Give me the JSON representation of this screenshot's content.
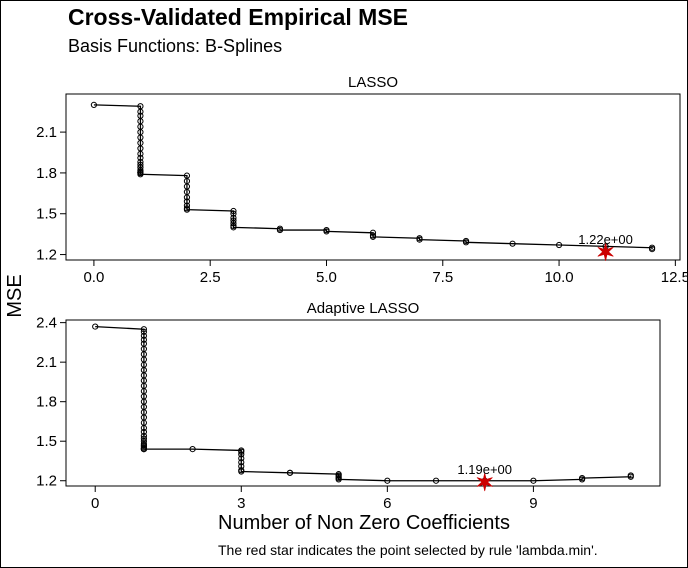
{
  "title": "Cross-Validated Empirical MSE",
  "subtitle": "Basis Functions: B-Splines",
  "ylabel": "MSE",
  "xlabel": "Number of Non Zero Coefficients",
  "footnote": "The red star indicates the point selected by rule 'lambda.min'.",
  "colors": {
    "line": "#000000",
    "star": "#cc0000"
  },
  "chart_data": [
    {
      "type": "line",
      "title": "LASSO",
      "xlim": [
        -0.6,
        12.6
      ],
      "ylim": [
        1.16,
        2.38
      ],
      "xticks": [
        0.0,
        2.5,
        5.0,
        7.5,
        10.0,
        12.5
      ],
      "xtick_labels": [
        "0.0",
        "2.5",
        "5.0",
        "7.5",
        "10.0",
        "12.5"
      ],
      "yticks": [
        1.2,
        1.5,
        1.8,
        2.1
      ],
      "ytick_labels": [
        "1.2",
        "1.5",
        "1.8",
        "2.1"
      ],
      "series": [
        {
          "x": [
            0,
            1,
            1,
            1,
            1,
            1,
            1,
            1,
            1,
            1,
            1,
            1,
            1,
            1,
            1,
            1,
            1,
            1,
            1,
            1,
            1,
            2,
            2,
            2,
            2,
            2,
            2,
            2,
            2,
            2,
            3,
            3,
            3,
            3,
            3,
            3,
            3,
            4,
            4,
            5,
            5,
            6,
            6,
            6,
            7,
            7,
            8,
            8,
            9,
            10,
            11,
            12,
            12
          ],
          "y": [
            2.3,
            2.29,
            2.25,
            2.22,
            2.18,
            2.14,
            2.1,
            2.06,
            2.02,
            1.98,
            1.94,
            1.91,
            1.88,
            1.86,
            1.84,
            1.82,
            1.81,
            1.8,
            1.8,
            1.8,
            1.79,
            1.78,
            1.74,
            1.7,
            1.66,
            1.62,
            1.59,
            1.56,
            1.54,
            1.53,
            1.52,
            1.5,
            1.47,
            1.45,
            1.43,
            1.41,
            1.4,
            1.39,
            1.38,
            1.38,
            1.37,
            1.36,
            1.34,
            1.33,
            1.32,
            1.31,
            1.3,
            1.29,
            1.28,
            1.27,
            1.26,
            1.25,
            1.24
          ]
        }
      ],
      "selected": {
        "x": 11,
        "y": 1.22,
        "label": "1.22e+00"
      }
    },
    {
      "type": "line",
      "title": "Adaptive LASSO",
      "xlim": [
        -0.6,
        11.6
      ],
      "ylim": [
        1.16,
        2.42
      ],
      "xticks": [
        0,
        3,
        6,
        9
      ],
      "xtick_labels": [
        "0",
        "3",
        "6",
        "9"
      ],
      "yticks": [
        1.2,
        1.5,
        1.8,
        2.1,
        2.4
      ],
      "ytick_labels": [
        "1.2",
        "1.5",
        "1.8",
        "2.1",
        "2.4"
      ],
      "series": [
        {
          "x": [
            0,
            1,
            1,
            1,
            1,
            1,
            1,
            1,
            1,
            1,
            1,
            1,
            1,
            1,
            1,
            1,
            1,
            1,
            1,
            1,
            1,
            1,
            1,
            1,
            1,
            1,
            1,
            1,
            1,
            1,
            1,
            1,
            1,
            2,
            3,
            3,
            3,
            3,
            3,
            3,
            3,
            3,
            4,
            4,
            5,
            5,
            5,
            5,
            5,
            6,
            7,
            8,
            9,
            10,
            10,
            11,
            11
          ],
          "y": [
            2.37,
            2.35,
            2.33,
            2.3,
            2.27,
            2.24,
            2.2,
            2.16,
            2.12,
            2.08,
            2.04,
            2.0,
            1.96,
            1.92,
            1.88,
            1.84,
            1.8,
            1.76,
            1.72,
            1.68,
            1.64,
            1.6,
            1.57,
            1.54,
            1.52,
            1.5,
            1.48,
            1.47,
            1.46,
            1.45,
            1.44,
            1.44,
            1.44,
            1.44,
            1.43,
            1.42,
            1.4,
            1.37,
            1.34,
            1.31,
            1.28,
            1.27,
            1.26,
            1.26,
            1.25,
            1.24,
            1.23,
            1.22,
            1.21,
            1.2,
            1.2,
            1.2,
            1.2,
            1.21,
            1.22,
            1.23,
            1.24
          ]
        }
      ],
      "selected": {
        "x": 8,
        "y": 1.19,
        "label": "1.19e+00"
      }
    }
  ]
}
